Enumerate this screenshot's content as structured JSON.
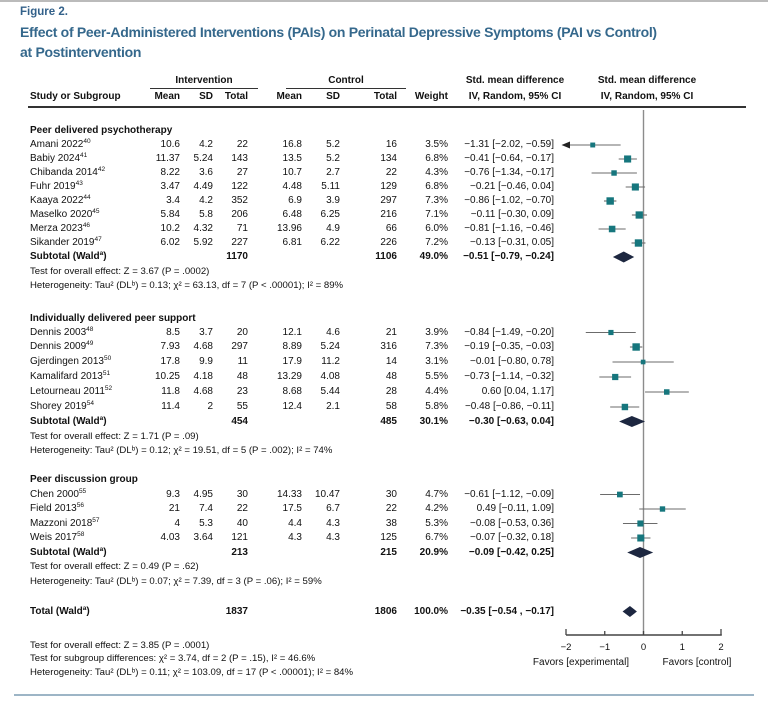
{
  "meta": {
    "figure_label": "Figure 2.",
    "title_line1": "Effect of Peer-Administered Interventions (PAIs) on Perinatal Depressive Symptoms (PAI vs Control)",
    "title_line2": "at Postintervention"
  },
  "header": {
    "study_col": "Study or Subgroup",
    "group1": "Intervention",
    "group2": "Control",
    "mean": "Mean",
    "sd": "SD",
    "total": "Total",
    "weight": "Weight",
    "smd_line1": "Std. mean difference",
    "smd_line2": "IV, Random, 95% CI"
  },
  "colors": {
    "title_blue": "#35688c",
    "marker_teal": "#16767d",
    "diamond_navy": "#1d2740",
    "ci_line_gray": "#6b6b6b",
    "zero_line_gray": "#8c8c8c",
    "axis_gray": "#444444",
    "bottom_rule_blue": "#9db5c6"
  },
  "chart_data": {
    "type": "scatter",
    "chart_kind": "forest-plot",
    "effect_measure": "Std. mean difference (IV, Random, 95% CI)",
    "xlim": [
      -2,
      2
    ],
    "x_ticks": [
      -2,
      -1,
      0,
      1,
      2
    ],
    "x_tick_labels": [
      "−2",
      "−1",
      "0",
      "1",
      "2"
    ],
    "left_label": "Favors [experimental]",
    "right_label": "Favors [control]",
    "groups": [
      {
        "name": "Peer delivered psychotherapy",
        "studies": [
          {
            "label": "Amani 2022",
            "ref": "40",
            "mean_i": "10.6",
            "sd_i": "4.2",
            "total_i": "22",
            "mean_c": "16.8",
            "sd_c": "5.2",
            "total_c": "16",
            "weight": "3.5%",
            "w": 3.5,
            "smd": "−1.31 [−2.02, −0.59]",
            "es": -1.31,
            "lo": -2.02,
            "hi": -0.59
          },
          {
            "label": "Babiy 2024",
            "ref": "41",
            "mean_i": "11.37",
            "sd_i": "5.24",
            "total_i": "143",
            "mean_c": "13.5",
            "sd_c": "5.2",
            "total_c": "134",
            "weight": "6.8%",
            "w": 6.8,
            "smd": "−0.41 [−0.64, −0.17]",
            "es": -0.41,
            "lo": -0.64,
            "hi": -0.17
          },
          {
            "label": "Chibanda 2014",
            "ref": "42",
            "mean_i": "8.22",
            "sd_i": "3.6",
            "total_i": "27",
            "mean_c": "10.7",
            "sd_c": "2.7",
            "total_c": "22",
            "weight": "4.3%",
            "w": 4.3,
            "smd": "−0.76 [−1.34, −0.17]",
            "es": -0.76,
            "lo": -1.34,
            "hi": -0.17
          },
          {
            "label": "Fuhr 2019",
            "ref": "43",
            "mean_i": "3.47",
            "sd_i": "4.49",
            "total_i": "122",
            "mean_c": "4.48",
            "sd_c": "5.11",
            "total_c": "129",
            "weight": "6.8%",
            "w": 6.8,
            "smd": "−0.21 [−0.46, 0.04]",
            "es": -0.21,
            "lo": -0.46,
            "hi": 0.04
          },
          {
            "label": "Kaaya 2022",
            "ref": "44",
            "mean_i": "3.4",
            "sd_i": "4.2",
            "total_i": "352",
            "mean_c": "6.9",
            "sd_c": "3.9",
            "total_c": "297",
            "weight": "7.3%",
            "w": 7.3,
            "smd": "−0.86 [−1.02, −0.70]",
            "es": -0.86,
            "lo": -1.02,
            "hi": -0.7
          },
          {
            "label": "Maselko 2020",
            "ref": "45",
            "mean_i": "5.84",
            "sd_i": "5.8",
            "total_i": "206",
            "mean_c": "6.48",
            "sd_c": "6.25",
            "total_c": "216",
            "weight": "7.1%",
            "w": 7.1,
            "smd": "−0.11 [−0.30, 0.09]",
            "es": -0.11,
            "lo": -0.3,
            "hi": 0.09
          },
          {
            "label": "Merza 2023",
            "ref": "46",
            "mean_i": "10.2",
            "sd_i": "4.32",
            "total_i": "71",
            "mean_c": "13.96",
            "sd_c": "4.9",
            "total_c": "66",
            "weight": "6.0%",
            "w": 6.0,
            "smd": "−0.81 [−1.16, −0.46]",
            "es": -0.81,
            "lo": -1.16,
            "hi": -0.46
          },
          {
            "label": "Sikander 2019",
            "ref": "47",
            "mean_i": "6.02",
            "sd_i": "5.92",
            "total_i": "227",
            "mean_c": "6.81",
            "sd_c": "6.22",
            "total_c": "226",
            "weight": "7.2%",
            "w": 7.2,
            "smd": "−0.13 [−0.31, 0.05]",
            "es": -0.13,
            "lo": -0.31,
            "hi": 0.05
          }
        ],
        "subtotal": {
          "label_main": "Subtotal (Wald",
          "label_sup": "a",
          "label_end": ")",
          "total_i": "1170",
          "total_c": "1106",
          "weight": "49.0%",
          "smd": "−0.51 [−0.79, −0.24]",
          "es": -0.51,
          "lo": -0.79,
          "hi": -0.24
        },
        "test_line": "Test for overall effect: Z = 3.67 (P = .0002)",
        "het_line": "Heterogeneity: Tau² (DLᵇ) = 0.13; χ² = 63.13, df = 7 (P < .00001); I² = 89%"
      },
      {
        "name": "Individually delivered peer support",
        "studies": [
          {
            "label": "Dennis 2003",
            "ref": "48",
            "mean_i": "8.5",
            "sd_i": "3.7",
            "total_i": "20",
            "mean_c": "12.1",
            "sd_c": "4.6",
            "total_c": "21",
            "weight": "3.9%",
            "w": 3.9,
            "smd": "−0.84 [−1.49, −0.20]",
            "es": -0.84,
            "lo": -1.49,
            "hi": -0.2
          },
          {
            "label": "Dennis 2009",
            "ref": "49",
            "mean_i": "7.93",
            "sd_i": "4.68",
            "total_i": "297",
            "mean_c": "8.89",
            "sd_c": "5.24",
            "total_c": "316",
            "weight": "7.3%",
            "w": 7.3,
            "smd": "−0.19 [−0.35, −0.03]",
            "es": -0.19,
            "lo": -0.35,
            "hi": -0.03
          },
          {
            "label": "Gjerdingen 2013",
            "ref": "50",
            "mean_i": "17.8",
            "sd_i": "9.9",
            "total_i": "11",
            "mean_c": "17.9",
            "sd_c": "11.2",
            "total_c": "14",
            "weight": "3.1%",
            "w": 3.1,
            "smd": "−0.01 [−0.80, 0.78]",
            "es": -0.01,
            "lo": -0.8,
            "hi": 0.78
          },
          {
            "label": "Kamalifard 2013",
            "ref": "51",
            "mean_i": "10.25",
            "sd_i": "4.18",
            "total_i": "48",
            "mean_c": "13.29",
            "sd_c": "4.08",
            "total_c": "48",
            "weight": "5.5%",
            "w": 5.5,
            "smd": "−0.73 [−1.14, −0.32]",
            "es": -0.73,
            "lo": -1.14,
            "hi": -0.32
          },
          {
            "label": "Letourneau 2011",
            "ref": "52",
            "mean_i": "11.8",
            "sd_i": "4.68",
            "total_i": "23",
            "mean_c": "8.68",
            "sd_c": "5.44",
            "total_c": "28",
            "weight": "4.4%",
            "w": 4.4,
            "smd": "0.60 [0.04, 1.17]",
            "es": 0.6,
            "lo": 0.04,
            "hi": 1.17
          },
          {
            "label": "Shorey 2019",
            "ref": "54",
            "mean_i": "11.4",
            "sd_i": "2",
            "total_i": "55",
            "mean_c": "12.4",
            "sd_c": "2.1",
            "total_c": "58",
            "weight": "5.8%",
            "w": 5.8,
            "smd": "−0.48 [−0.86, −0.11]",
            "es": -0.48,
            "lo": -0.86,
            "hi": -0.11
          }
        ],
        "subtotal": {
          "label_main": "Subtotal (Wald",
          "label_sup": "a",
          "label_end": ")",
          "total_i": "454",
          "total_c": "485",
          "weight": "30.1%",
          "smd": "−0.30 [−0.63, 0.04]",
          "es": -0.3,
          "lo": -0.63,
          "hi": 0.04
        },
        "test_line": "Test for overall effect: Z = 1.71 (P = .09)",
        "het_line": "Heterogeneity: Tau² (DLᵇ) = 0.12; χ² = 19.51, df = 5 (P = .002); I² = 74%"
      },
      {
        "name": "Peer discussion group",
        "studies": [
          {
            "label": "Chen 2000",
            "ref": "55",
            "mean_i": "9.3",
            "sd_i": "4.95",
            "total_i": "30",
            "mean_c": "14.33",
            "sd_c": "10.47",
            "total_c": "30",
            "weight": "4.7%",
            "w": 4.7,
            "smd": "−0.61 [−1.12, −0.09]",
            "es": -0.61,
            "lo": -1.12,
            "hi": -0.09
          },
          {
            "label": "Field 2013",
            "ref": "56",
            "mean_i": "21",
            "sd_i": "7.4",
            "total_i": "22",
            "mean_c": "17.5",
            "sd_c": "6.7",
            "total_c": "22",
            "weight": "4.2%",
            "w": 4.2,
            "smd": "0.49 [−0.11, 1.09]",
            "es": 0.49,
            "lo": -0.11,
            "hi": 1.09
          },
          {
            "label": "Mazzoni 2018",
            "ref": "57",
            "mean_i": "4",
            "sd_i": "5.3",
            "total_i": "40",
            "mean_c": "4.4",
            "sd_c": "4.3",
            "total_c": "38",
            "weight": "5.3%",
            "w": 5.3,
            "smd": "−0.08 [−0.53, 0.36]",
            "es": -0.08,
            "lo": -0.53,
            "hi": 0.36
          },
          {
            "label": "Weis 2017",
            "ref": "58",
            "mean_i": "4.03",
            "sd_i": "3.64",
            "total_i": "121",
            "mean_c": "4.3",
            "sd_c": "4.3",
            "total_c": "125",
            "weight": "6.7%",
            "w": 6.7,
            "smd": "−0.07 [−0.32, 0.18]",
            "es": -0.07,
            "lo": -0.32,
            "hi": 0.18
          }
        ],
        "subtotal": {
          "label_main": "Subtotal (Wald",
          "label_sup": "a",
          "label_end": ")",
          "total_i": "213",
          "total_c": "215",
          "weight": "20.9%",
          "smd": "−0.09 [−0.42, 0.25]",
          "es": -0.09,
          "lo": -0.42,
          "hi": 0.25
        },
        "test_line": "Test for overall effect: Z = 0.49 (P = .62)",
        "het_line": "Heterogeneity: Tau² (DLᵇ) = 0.07; χ² = 7.39, df = 3 (P = .06); I² = 59%"
      }
    ],
    "total": {
      "label_main": "Total (Wald",
      "label_sup": "a",
      "label_end": ")",
      "total_i": "1837",
      "total_c": "1806",
      "weight": "100.0%",
      "smd": "−0.35 [−0.54 , −0.17]",
      "es": -0.35,
      "lo": -0.54,
      "hi": -0.17
    },
    "footnotes": [
      "Test for overall effect: Z = 3.85 (P = .0001)",
      "Test for subgroup differences: χ² = 3.74, df = 2 (P = .15), I² = 46.6%",
      "Heterogeneity: Tau² (DLᵇ) = 0.11; χ² = 103.09, df = 17 (P < .00001); I² = 84%"
    ]
  }
}
